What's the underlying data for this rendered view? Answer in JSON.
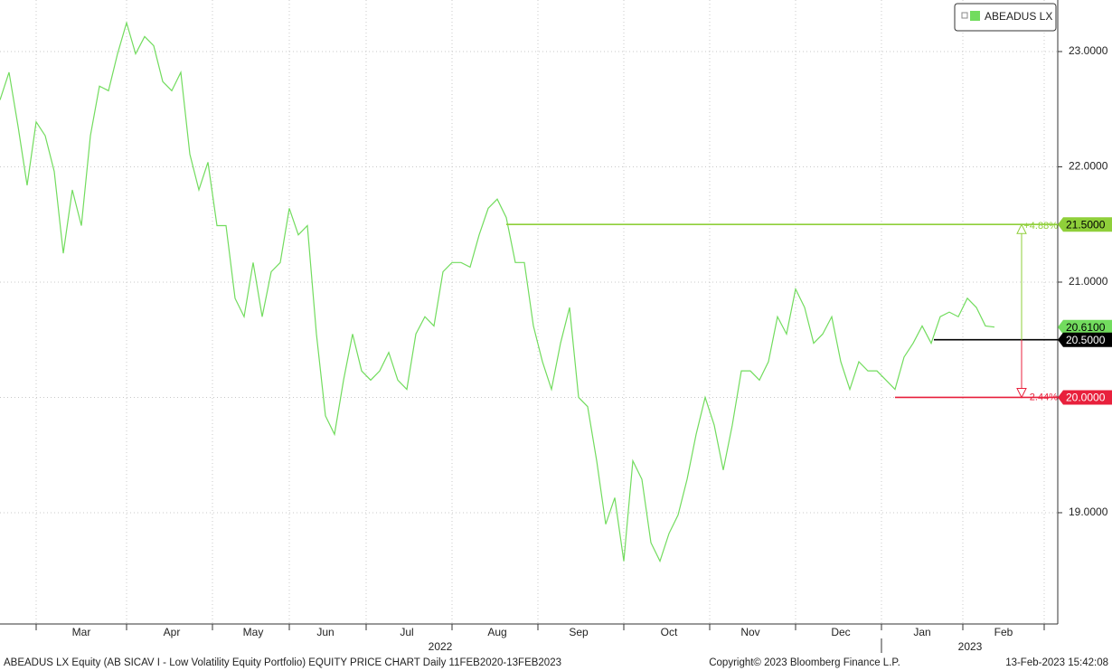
{
  "chart_data": {
    "type": "line",
    "series": [
      {
        "name": "ABEADUS LX",
        "color": "#72dc5e",
        "values": [
          22.58,
          22.82,
          22.35,
          21.84,
          22.39,
          22.27,
          21.96,
          21.25,
          21.8,
          21.49,
          22.27,
          22.7,
          22.66,
          22.98,
          23.25,
          22.98,
          23.13,
          23.05,
          22.74,
          22.66,
          22.82,
          22.11,
          21.8,
          22.04,
          21.49,
          21.49,
          20.86,
          20.7,
          21.17,
          20.7,
          21.09,
          21.17,
          21.64,
          21.41,
          21.49,
          20.55,
          19.84,
          19.68,
          20.15,
          20.55,
          20.23,
          20.15,
          20.23,
          20.39,
          20.15,
          20.07,
          20.55,
          20.7,
          20.62,
          21.09,
          21.17,
          21.17,
          21.13,
          21.41,
          21.64,
          21.72,
          21.56,
          21.17,
          21.17,
          20.62,
          20.31,
          20.07,
          20.47,
          20.78,
          20.0,
          19.92,
          19.45,
          18.9,
          19.13,
          18.58,
          19.45,
          19.29,
          18.74,
          18.58,
          18.82,
          18.98,
          19.29,
          19.68,
          20.0,
          19.76,
          19.37,
          19.76,
          20.23,
          20.23,
          20.15,
          20.31,
          20.7,
          20.55,
          20.94,
          20.78,
          20.47,
          20.55,
          20.7,
          20.31,
          20.07,
          20.31,
          20.23,
          20.23,
          20.15,
          20.07,
          20.35,
          20.47,
          20.62,
          20.47,
          20.7,
          20.74,
          20.7,
          20.86,
          20.78,
          20.62,
          20.61,
          null,
          null,
          null,
          null,
          null,
          null
        ]
      }
    ],
    "categories": [
      null,
      null,
      null,
      null,
      null,
      null,
      null,
      null,
      null,
      "Mar",
      null,
      null,
      null,
      null,
      null,
      null,
      null,
      null,
      null,
      "Apr",
      null,
      null,
      null,
      null,
      null,
      null,
      null,
      null,
      "May",
      null,
      null,
      null,
      null,
      null,
      null,
      null,
      "Jun",
      null,
      null,
      null,
      null,
      null,
      null,
      null,
      null,
      "Jul",
      null,
      null,
      null,
      null,
      null,
      null,
      null,
      null,
      null,
      "Aug",
      null,
      null,
      null,
      null,
      null,
      null,
      null,
      null,
      "Sep",
      null,
      null,
      null,
      null,
      null,
      null,
      null,
      null,
      null,
      "Oct",
      null,
      null,
      null,
      null,
      null,
      null,
      null,
      null,
      "Nov",
      null,
      null,
      null,
      null,
      null,
      null,
      null,
      null,
      null,
      "Dec",
      null,
      null,
      null,
      null,
      null,
      null,
      null,
      null,
      "Jan",
      null,
      null,
      null,
      null,
      null,
      null,
      null,
      null,
      "Feb",
      null,
      null,
      null,
      null,
      null
    ],
    "ylim": [
      18.035,
      23.447
    ],
    "yticks": [
      {
        "value": 19,
        "label": "19.0000"
      },
      {
        "value": 20,
        "label": "20.0000"
      },
      {
        "value": 21,
        "label": "21.0000"
      },
      {
        "value": 22,
        "label": "22.0000"
      },
      {
        "value": 23,
        "label": "23.0000"
      }
    ],
    "grid": true,
    "year_labels": [
      "2022",
      "2023"
    ],
    "last_price": {
      "value": 20.61,
      "label": "20.6100"
    },
    "levels": [
      {
        "value": 21.5,
        "label": "21.5000",
        "change": "+4.88%",
        "color": "#8fcf3a"
      },
      {
        "value": 20.5,
        "label": "20.5000",
        "color": "#000000"
      },
      {
        "value": 20.0,
        "label": "20.0000",
        "change": "-2.44%",
        "color": "#e8203c"
      }
    ],
    "footer": {
      "left": "ABEADUS LX Equity (AB SICAV I - Low Volatility Equity Portfolio) EQUITY PRICE CHART  Daily 11FEB2020-13FEB2023",
      "center": "Copyright© 2023 Bloomberg Finance L.P.",
      "right": "13-Feb-2023 15:42:08"
    }
  }
}
